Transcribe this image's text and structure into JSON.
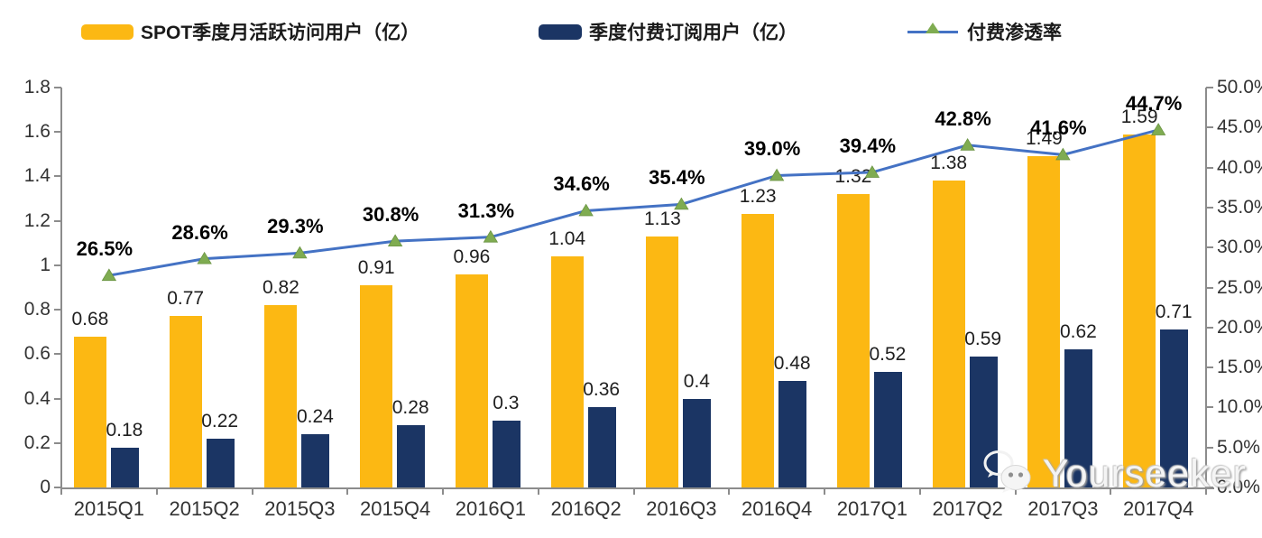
{
  "chart_data": {
    "type": "bar",
    "title": "",
    "categories": [
      "2015Q1",
      "2015Q2",
      "2015Q3",
      "2015Q4",
      "2016Q1",
      "2016Q2",
      "2016Q3",
      "2016Q4",
      "2017Q1",
      "2017Q2",
      "2017Q3",
      "2017Q4"
    ],
    "series": [
      {
        "name": "SPOT季度月活跃访问用户（亿）",
        "type": "bar",
        "axis": "left",
        "color": "#FCB813",
        "values": [
          0.68,
          0.77,
          0.82,
          0.91,
          0.96,
          1.04,
          1.13,
          1.23,
          1.32,
          1.38,
          1.49,
          1.59
        ],
        "labels": [
          "0.68",
          "0.77",
          "0.82",
          "0.91",
          "0.96",
          "1.04",
          "1.13",
          "1.23",
          "1.32",
          "1.38",
          "1.49",
          "1.59"
        ]
      },
      {
        "name": "季度付费订阅用户（亿）",
        "type": "bar",
        "axis": "left",
        "color": "#1B3564",
        "values": [
          0.18,
          0.22,
          0.24,
          0.28,
          0.3,
          0.36,
          0.4,
          0.48,
          0.52,
          0.59,
          0.62,
          0.71
        ],
        "labels": [
          "0.18",
          "0.22",
          "0.24",
          "0.28",
          "0.3",
          "0.36",
          "0.4",
          "0.48",
          "0.52",
          "0.59",
          "0.62",
          "0.71"
        ]
      },
      {
        "name": "付费渗透率",
        "type": "line",
        "axis": "right",
        "color": "#4472C4",
        "marker": "triangle",
        "marker_color": "#7FAC51",
        "values": [
          26.5,
          28.6,
          29.3,
          30.8,
          31.3,
          34.6,
          35.4,
          39.0,
          39.4,
          42.8,
          41.6,
          44.7
        ],
        "labels": [
          "26.5%",
          "28.6%",
          "29.3%",
          "30.8%",
          "31.3%",
          "34.6%",
          "35.4%",
          "39.0%",
          "39.4%",
          "42.8%",
          "41.6%",
          "44.7%"
        ]
      }
    ],
    "left_axis": {
      "min": 0,
      "max": 1.8,
      "step": 0.2,
      "tick_labels": [
        "0",
        "0.2",
        "0.4",
        "0.6",
        "0.8",
        "1",
        "1.2",
        "1.4",
        "1.6",
        "1.8"
      ]
    },
    "right_axis": {
      "min": 0,
      "max": 50,
      "step": 5,
      "tick_labels": [
        "0.0%",
        "5.0%",
        "10.0%",
        "15.0%",
        "20.0%",
        "25.0%",
        "30.0%",
        "35.0%",
        "40.0%",
        "45.0%",
        "50.0%"
      ]
    },
    "grid": false,
    "legend_position": "top"
  },
  "watermark": {
    "text": "Yourseeker",
    "icon": "wechat-icon"
  }
}
